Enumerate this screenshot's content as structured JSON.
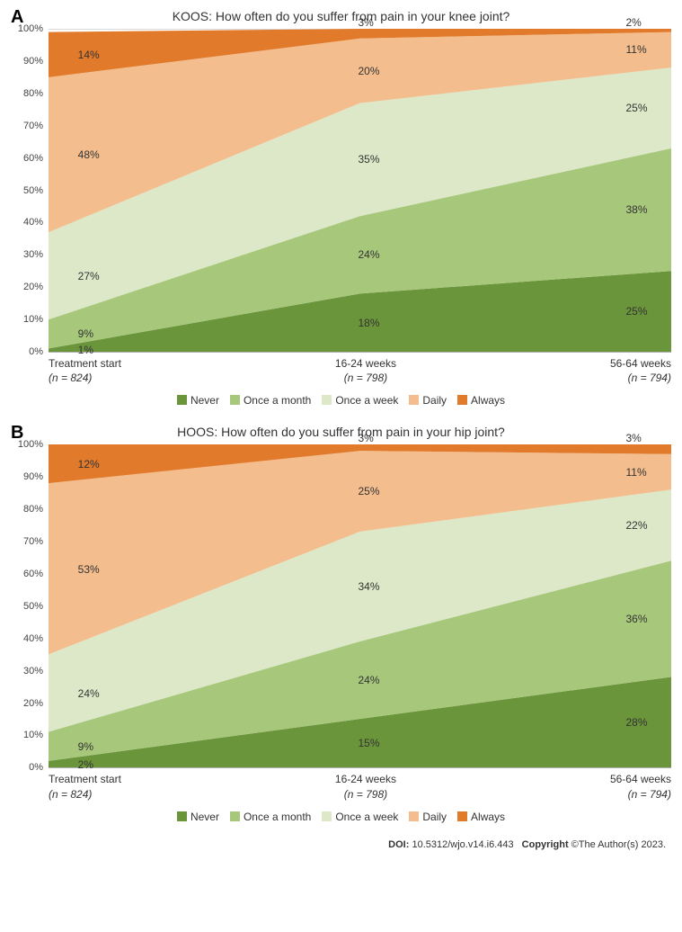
{
  "colors": {
    "never": "#6a953b",
    "month": "#a7c77b",
    "week": "#dce8c8",
    "daily": "#f3bd8d",
    "always": "#e17a2a",
    "grid": "#d9d9d9",
    "text": "#333333",
    "bg": "#ffffff"
  },
  "legend": {
    "never": "Never",
    "month": "Once a month",
    "week": "Once a week",
    "daily": "Daily",
    "always": "Always"
  },
  "yaxis": {
    "min": 0,
    "max": 100,
    "step": 10,
    "suffix": "%"
  },
  "label_x_positions": [
    5,
    50,
    93
  ],
  "panels": [
    {
      "letter": "A",
      "title": "KOOS: How often do you suffer from pain in your knee joint?",
      "categories": [
        {
          "label": "Treatment start",
          "n": "824"
        },
        {
          "label": "16-24 weeks",
          "n": "798"
        },
        {
          "label": "56-64 weeks",
          "n": "794"
        }
      ],
      "series": [
        {
          "key": "never",
          "values": [
            1,
            18,
            25
          ]
        },
        {
          "key": "month",
          "values": [
            9,
            24,
            38
          ]
        },
        {
          "key": "week",
          "values": [
            27,
            35,
            25
          ]
        },
        {
          "key": "daily",
          "values": [
            48,
            20,
            11
          ]
        },
        {
          "key": "always",
          "values": [
            14,
            3,
            2
          ]
        }
      ],
      "always_label_mode": "above"
    },
    {
      "letter": "B",
      "title": "HOOS: How often do you suffer from pain in your hip joint?",
      "categories": [
        {
          "label": "Treatment start",
          "n": "824"
        },
        {
          "label": "16-24 weeks",
          "n": "798"
        },
        {
          "label": "56-64 weeks",
          "n": "794"
        }
      ],
      "series": [
        {
          "key": "never",
          "values": [
            2,
            15,
            28
          ]
        },
        {
          "key": "month",
          "values": [
            9,
            24,
            36
          ]
        },
        {
          "key": "week",
          "values": [
            24,
            34,
            22
          ]
        },
        {
          "key": "daily",
          "values": [
            53,
            25,
            11
          ]
        },
        {
          "key": "always",
          "values": [
            12,
            3,
            3
          ]
        }
      ],
      "always_label_mode": "above"
    }
  ],
  "footer": {
    "doi_label": "DOI:",
    "doi": "10.5312/wjo.v14.i6.443",
    "copyright_label": "Copyright",
    "copyright_rest": "©The Author(s) 2023."
  }
}
